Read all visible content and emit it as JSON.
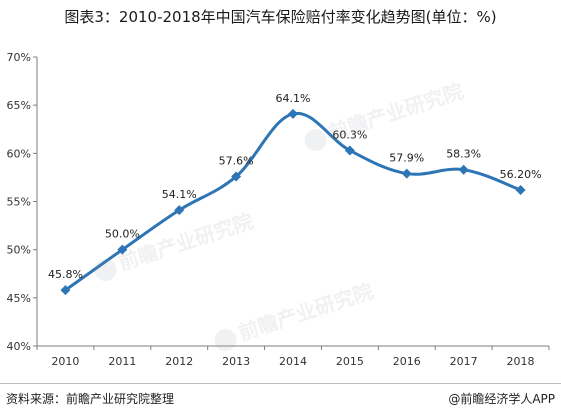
{
  "title": "图表3：2010-2018年中国汽车保险赔付率变化趋势图(单位：%)",
  "source": "资料来源：前瞻产业研究院整理",
  "brand": "@前瞻经济学人APP",
  "watermark_text": "前瞻产业研究院",
  "colors": {
    "line": "#2e75b6",
    "marker": "#2e75b6",
    "axis": "#7f7f7f"
  },
  "chart_data": {
    "type": "line",
    "categories": [
      "2010",
      "2011",
      "2012",
      "2013",
      "2014",
      "2015",
      "2016",
      "2017",
      "2018"
    ],
    "series": [
      {
        "values": [
          45.8,
          50.0,
          54.1,
          57.6,
          64.1,
          60.3,
          57.9,
          58.3,
          56.2
        ]
      }
    ],
    "data_labels": [
      "45.8%",
      "50.0%",
      "54.1%",
      "57.6%",
      "64.1%",
      "60.3%",
      "57.9%",
      "58.3%",
      "56.20%"
    ],
    "y_ticks": [
      "40%",
      "45%",
      "50%",
      "55%",
      "60%",
      "65%",
      "70%"
    ],
    "ylim": [
      40,
      70
    ],
    "grid": false,
    "legend": "none",
    "smooth": true
  }
}
